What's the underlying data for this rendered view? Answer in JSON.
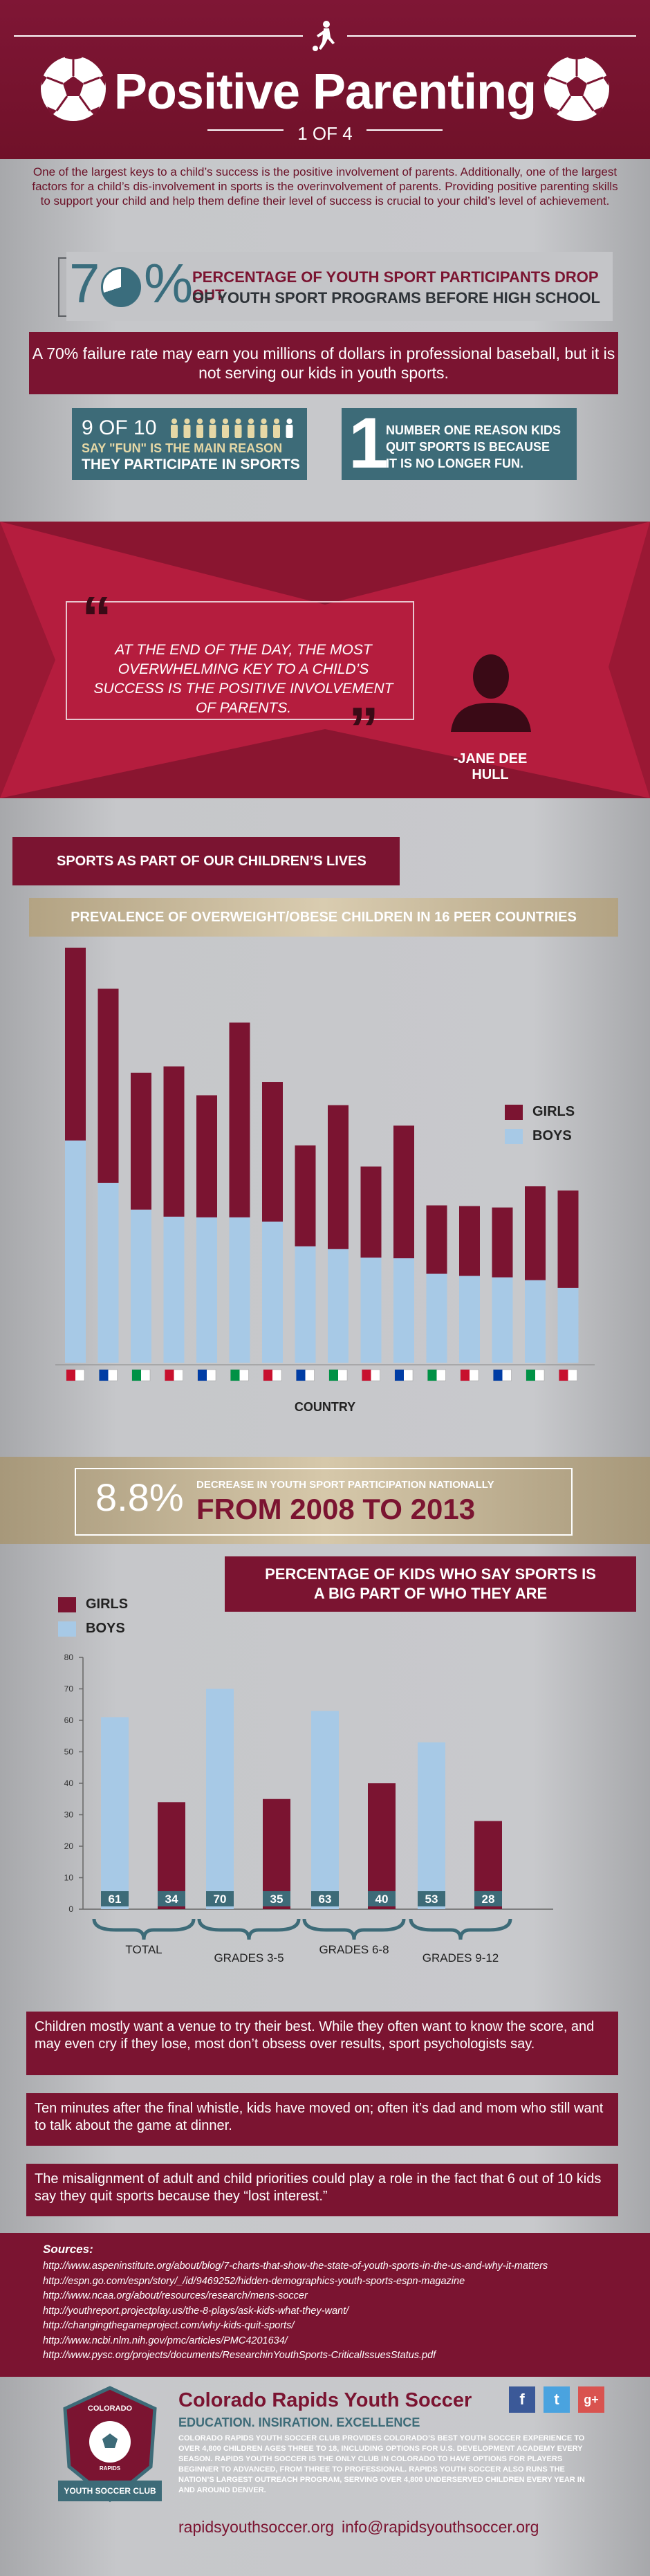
{
  "header": {
    "title": "Positive Parenting",
    "subtitle": "1 OF 4"
  },
  "intro": "One of the largest keys to a child’s success is the positive involvement of parents. Additionally, one of the largest factors for a child’s dis-involvement in sports is the overinvolvement of parents. Providing positive parenting skills to support your child and help them define their level of success is crucial to your child’s level of achievement.",
  "stat70": {
    "digit": "7",
    "percent": "%",
    "line1": "PERCENTAGE OF YOUTH SPORT PARTICIPANTS DROP OUT",
    "line2": "OF YOUTH SPORT PROGRAMS BEFORE HIGH SCHOOL",
    "value": 70
  },
  "banner1": "A 70% failure rate may earn you millions of dollars in professional baseball, but it is not serving our kids in youth sports.",
  "nine_of_ten": {
    "big": "9 OF 10",
    "line2": "SAY \"FUN\" IS THE MAIN REASON",
    "line3": "THEY PARTICIPATE IN SPORTS",
    "count": 9,
    "total": 10
  },
  "number_one": {
    "big": "1",
    "line1": "NUMBER ONE REASON KIDS",
    "line2": "QUIT SPORTS IS BECAUSE",
    "line3": "IT IS NO LONGER FUN."
  },
  "quote": {
    "text": "AT THE END OF THE DAY, THE MOST OVERWHELMING KEY TO A CHILD’S SUCCESS IS THE POSITIVE INVOLVEMENT OF PARENTS.",
    "author": "-JANE DEE HULL"
  },
  "section_title": "SPORTS AS PART OF OUR CHILDREN’S LIVES",
  "colors": {
    "girls": "#7b1431",
    "boys": "#a7c9e6",
    "teal": "#3d6b78"
  },
  "chart_data": [
    {
      "type": "bar",
      "title": "PREVALENCE OF OVERWEIGHT/OBESE CHILDREN IN 16 PEER COUNTRIES",
      "xlabel": "COUNTRY",
      "categories": [
        "USA",
        "Italy",
        "UK",
        "Canada",
        "Australia",
        "Spain",
        "Portugal",
        "Sweden",
        "Finland",
        "Netherlands",
        "Germany",
        "Denmark",
        "France",
        "Norway",
        "Japan",
        "Switzerland"
      ],
      "stacked": true,
      "series": [
        {
          "name": "BOYS",
          "values": [
            31.5,
            25.5,
            21.7,
            20.7,
            20.6,
            20.6,
            20.0,
            16.5,
            16.1,
            14.9,
            14.8,
            12.6,
            12.3,
            12.1,
            11.7,
            10.6
          ]
        },
        {
          "name": "GIRLS",
          "values": [
            29.0,
            27.5,
            19.4,
            21.3,
            17.3,
            27.6,
            19.8,
            14.3,
            20.4,
            12.9,
            18.8,
            9.7,
            9.9,
            9.9,
            13.3,
            13.8
          ]
        }
      ],
      "legend": "right"
    },
    {
      "type": "bar",
      "title": "PERCENTAGE OF KIDS WHO SAY SPORTS IS A BIG PART OF WHO THEY ARE",
      "categories": [
        "TOTAL",
        "GRADES 3-5",
        "GRADES 6-8",
        "GRADES 9-12"
      ],
      "series": [
        {
          "name": "BOYS",
          "values": [
            61,
            70,
            63,
            53
          ]
        },
        {
          "name": "GIRLS",
          "values": [
            34,
            35,
            40,
            28
          ]
        }
      ],
      "ylim": [
        0,
        80
      ],
      "yticks": [
        0,
        10,
        20,
        30,
        40,
        50,
        60,
        70,
        80
      ],
      "legend": "top-left"
    }
  ],
  "legend": {
    "girls": "GIRLS",
    "boys": "BOYS"
  },
  "chart2_labels": {
    "total": "TOTAL",
    "g35": "GRADES 3-5",
    "g68": "GRADES 6-8",
    "g912": "GRADES 9-12"
  },
  "decrease": {
    "value": "8.8%",
    "line1": "DECREASE IN YOUTH SPORT PARTICIPATION NATIONALLY",
    "line2": "FROM 2008 TO 2013"
  },
  "kids_title_line1": "PERCENTAGE OF KIDS WHO SAY SPORTS IS",
  "kids_title_line2": "A BIG PART OF WHO THEY ARE",
  "facts": [
    "Children mostly want a venue to try their best. While they often want to know the score, and may even cry if they lose, most don’t obsess over results, sport psychologists say.",
    "Ten minutes after the final whistle, kids have moved on; often it’s dad and mom who still want to talk about the game at dinner.",
    "The misalignment of adult and child priorities could play a role in the fact that 6 out of 10 kids say they quit sports because they “lost interest.”"
  ],
  "sources": {
    "heading": "Sources:",
    "links": [
      "http://www.aspeninstitute.org/about/blog/7-charts-that-show-the-state-of-youth-sports-in-the-us-and-why-it-matters",
      "http://espn.go.com/espn/story/_/id/9469252/hidden-demographics-youth-sports-espn-magazine",
      "http://www.ncaa.org/about/resources/research/mens-soccer",
      "http://youthreport.projectplay.us/the-8-plays/ask-kids-what-they-want/",
      "http://changingthegameproject.com/why-kids-quit-sports/",
      "http://www.ncbi.nlm.nih.gov/pmc/articles/PMC4201634/",
      "http://www.pysc.org/projects/documents/ResearchinYouthSports-CriticalIssuesStatus.pdf"
    ]
  },
  "footer": {
    "org": "Colorado Rapids Youth Soccer",
    "tagline": "EDUCATION. INSIRATION. EXCELLENCE",
    "blurb": "COLORADO RAPIDS YOUTH SOCCER CLUB PROVIDES COLORADO’S BEST YOUTH SOCCER EXPERIENCE TO OVER 4,800 CHILDREN AGES THREE TO 18, INCLUDING OPTIONS FOR U.S. DEVELOPMENT ACADEMY EVERY SEASON. RAPIDS YOUTH SOCCER IS THE ONLY CLUB IN COLORADO TO HAVE OPTIONS FOR PLAYERS BEGINNER TO ADVANCED, FROM THREE TO PROFESSIONAL. RAPIDS YOUTH SOCCER ALSO RUNS THE NATION’S LARGEST OUTREACH PROGRAM, SERVING OVER 4,800 UNDERSERVED CHILDREN EVERY YEAR IN AND AROUND DENVER.",
    "website": "rapidsyouthsoccer.org",
    "email": "info@rapidsyouthsoccer.org",
    "logo_top": "COLORADO",
    "logo_mid": "RAPIDS",
    "logo_banner": "YOUTH SOCCER CLUB",
    "social": [
      "f",
      "t",
      "g+"
    ]
  }
}
